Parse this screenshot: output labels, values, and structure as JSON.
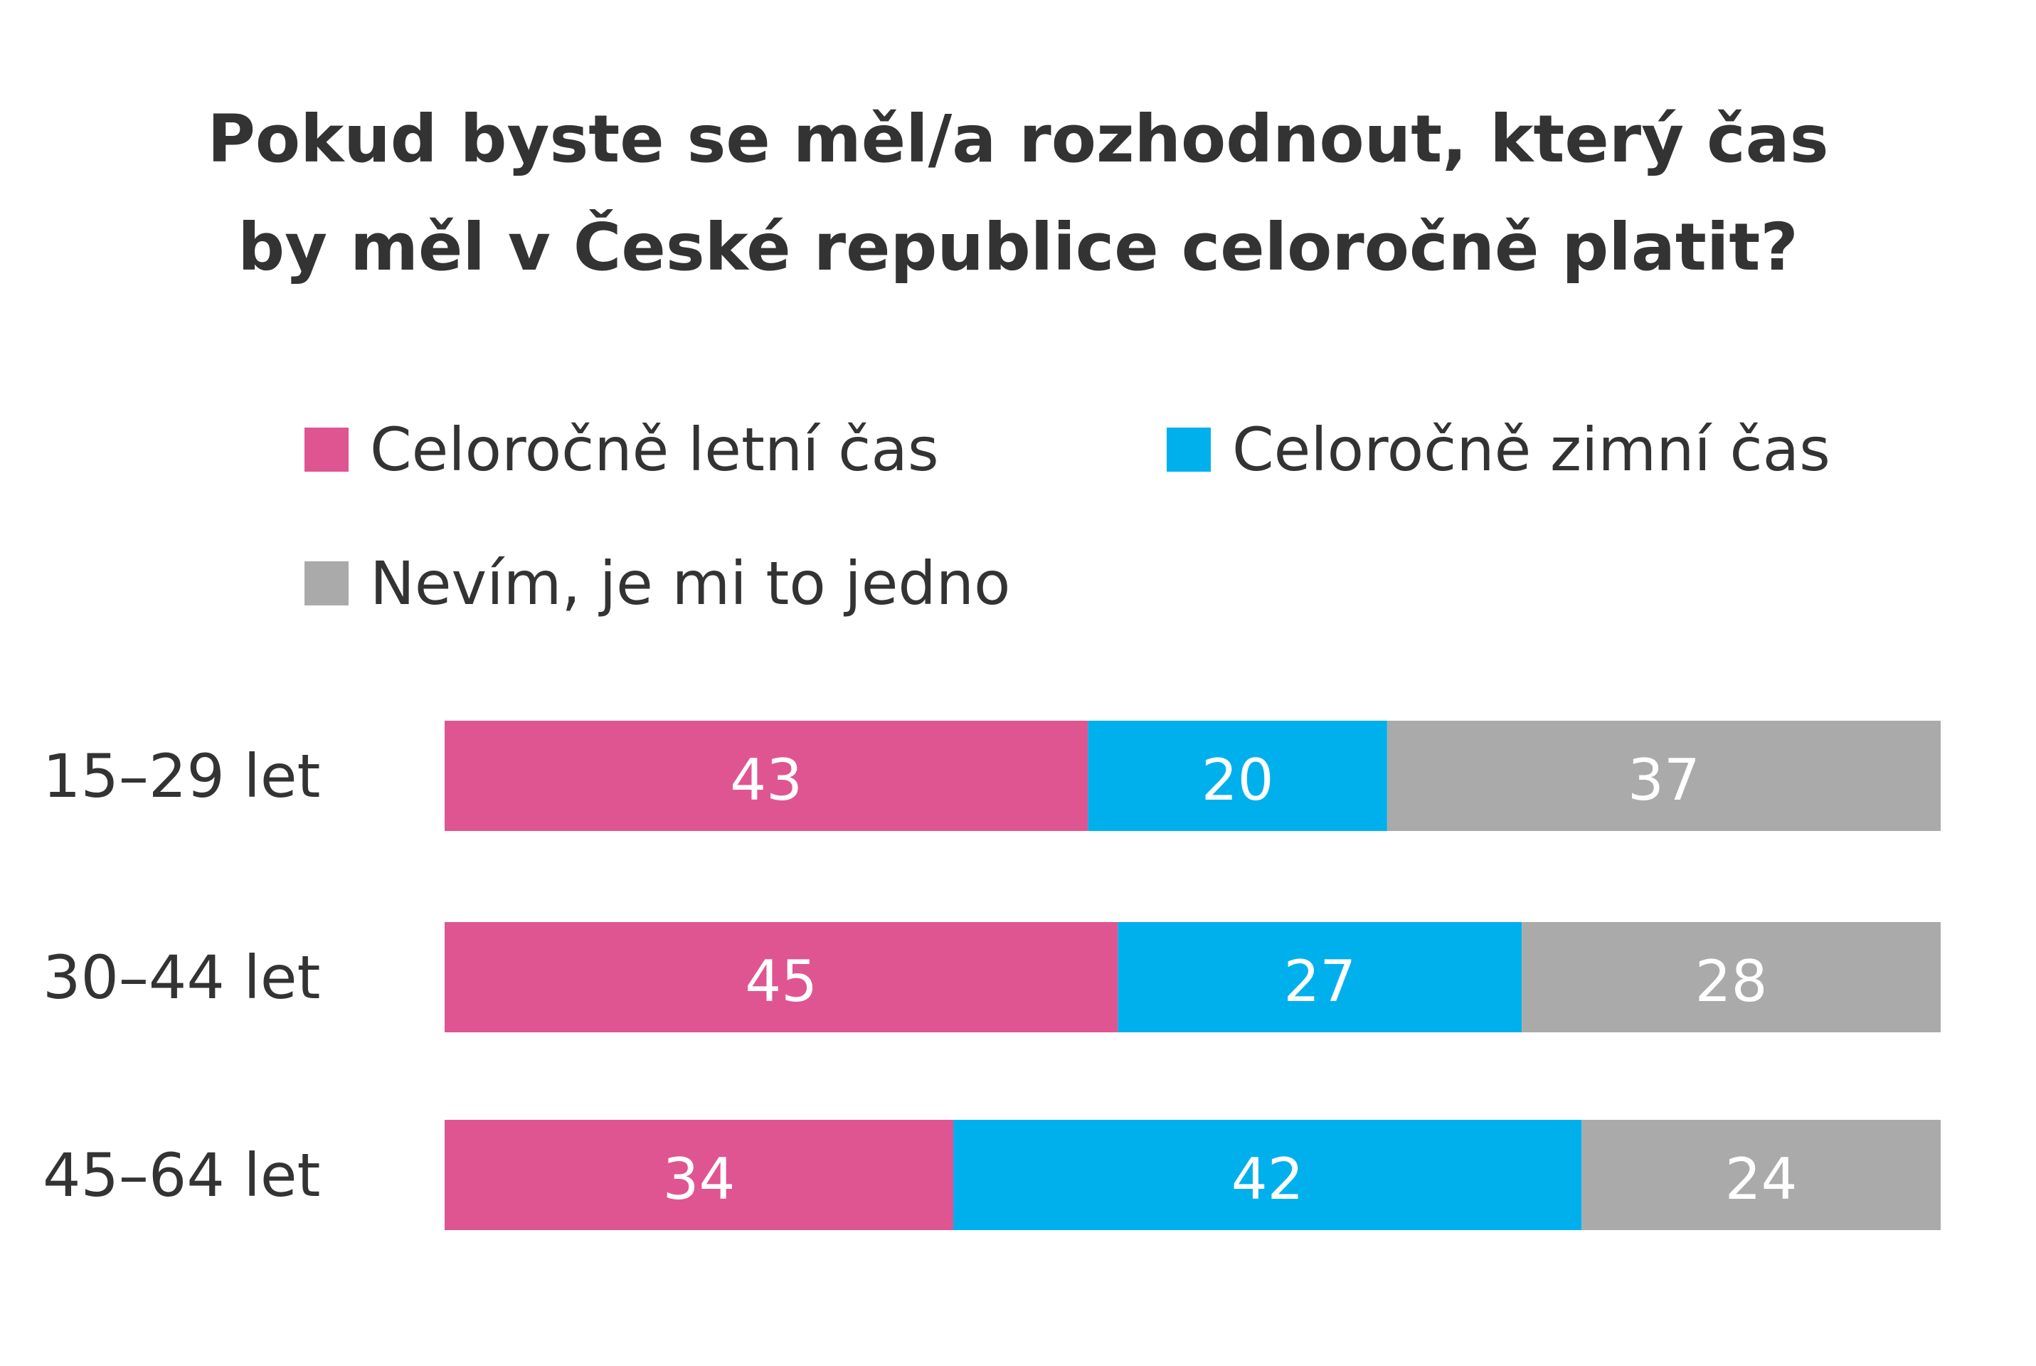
{
  "chart_data": {
    "type": "bar",
    "orientation": "horizontal",
    "stacked": true,
    "title": "Pokud byste se měl/a rozhodnout, který čas by měl v České republice celoročně platit?",
    "title_lines": [
      "Pokud byste se měl/a rozhodnout, který čas",
      "by měl v České republice celoročně platit?"
    ],
    "categories": [
      "15–29 let",
      "30–44 let",
      "45–64 let"
    ],
    "series": [
      {
        "name": "Celoročně letní čas",
        "values": [
          43,
          45,
          34
        ],
        "color": "#df5591"
      },
      {
        "name": "Celoročně zimní čas",
        "values": [
          20,
          27,
          42
        ],
        "color": "#00b0ec"
      },
      {
        "name": "Nevím, je mi to jedno",
        "values": [
          37,
          28,
          24
        ],
        "color": "#aaaaaa"
      }
    ],
    "data_labels": true,
    "xlim": [
      0,
      100
    ],
    "grid": false,
    "legend_position": "top"
  }
}
